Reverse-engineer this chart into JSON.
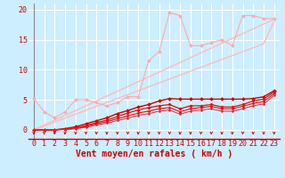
{
  "background_color": "#cceeff",
  "grid_color": "#ffffff",
  "xlabel": "Vent moyen/en rafales ( km/h )",
  "xlabel_color": "#cc0000",
  "xlabel_fontsize": 7,
  "tick_color": "#cc0000",
  "tick_fontsize": 6,
  "ylim": [
    -1.5,
    21
  ],
  "xlim": [
    -0.5,
    23.5
  ],
  "yticks": [
    0,
    5,
    10,
    15,
    20
  ],
  "xticks": [
    0,
    1,
    2,
    3,
    4,
    5,
    6,
    7,
    8,
    9,
    10,
    11,
    12,
    13,
    14,
    15,
    16,
    17,
    18,
    19,
    20,
    21,
    22,
    23
  ],
  "x": [
    0,
    1,
    2,
    3,
    4,
    5,
    6,
    7,
    8,
    9,
    10,
    11,
    12,
    13,
    14,
    15,
    16,
    17,
    18,
    19,
    20,
    21,
    22,
    23
  ],
  "series": [
    {
      "name": "line1_light_straight",
      "y": [
        0,
        0.65,
        1.3,
        1.95,
        2.6,
        3.25,
        3.9,
        4.55,
        5.2,
        5.85,
        6.5,
        7.15,
        7.8,
        8.45,
        9.1,
        9.75,
        10.4,
        11.05,
        11.7,
        12.35,
        13.0,
        13.65,
        14.3,
        18.0
      ],
      "color": "#ffbbbb",
      "linewidth": 1.0,
      "marker": null,
      "linestyle": "-"
    },
    {
      "name": "line1b_light_straight2",
      "y": [
        0,
        0.8,
        1.6,
        2.4,
        3.2,
        4.0,
        4.8,
        5.6,
        6.4,
        7.2,
        8.0,
        8.8,
        9.6,
        10.4,
        11.2,
        12.0,
        12.8,
        13.6,
        14.4,
        15.2,
        16.0,
        16.8,
        17.6,
        18.4
      ],
      "color": "#ffbbbb",
      "linewidth": 1.0,
      "marker": null,
      "linestyle": "-"
    },
    {
      "name": "line2_light_diamond",
      "y": [
        5.2,
        3.0,
        2.0,
        3.0,
        5.0,
        5.0,
        4.5,
        4.0,
        4.5,
        5.5,
        5.5,
        11.5,
        13.0,
        19.5,
        19.0,
        14.0,
        14.0,
        14.5,
        15.0,
        14.0,
        19.0,
        19.0,
        18.5,
        18.5
      ],
      "color": "#ffaaaa",
      "linewidth": 0.8,
      "marker": "D",
      "markersize": 2.0,
      "linestyle": "-"
    },
    {
      "name": "line3_dark_top",
      "y": [
        0,
        0,
        0,
        0.2,
        0.5,
        1.0,
        1.5,
        2.0,
        2.7,
        3.2,
        3.8,
        4.2,
        4.8,
        5.2,
        5.1,
        5.1,
        5.1,
        5.1,
        5.1,
        5.1,
        5.1,
        5.2,
        5.5,
        6.5
      ],
      "color": "#cc0000",
      "linewidth": 1.0,
      "marker": "D",
      "markersize": 2.0,
      "linestyle": "-"
    },
    {
      "name": "line4_dark_mid1",
      "y": [
        0,
        0,
        0,
        0.1,
        0.3,
        0.7,
        1.2,
        1.6,
        2.2,
        2.8,
        3.3,
        3.7,
        4.0,
        4.2,
        3.5,
        4.0,
        4.0,
        4.2,
        3.8,
        3.8,
        4.2,
        4.8,
        5.1,
        6.3
      ],
      "color": "#dd1111",
      "linewidth": 0.9,
      "marker": "D",
      "markersize": 1.8,
      "linestyle": "-"
    },
    {
      "name": "line5_dark_mid2",
      "y": [
        0,
        0,
        0,
        0.08,
        0.25,
        0.55,
        1.0,
        1.35,
        1.85,
        2.3,
        2.8,
        3.1,
        3.5,
        3.7,
        3.0,
        3.5,
        3.7,
        3.9,
        3.5,
        3.5,
        3.9,
        4.4,
        4.7,
        6.0
      ],
      "color": "#dd1111",
      "linewidth": 0.8,
      "marker": "D",
      "markersize": 1.5,
      "linestyle": "-"
    },
    {
      "name": "line6_dark_low",
      "y": [
        0,
        0,
        0,
        0.05,
        0.18,
        0.42,
        0.8,
        1.1,
        1.55,
        1.95,
        2.4,
        2.7,
        3.1,
        3.3,
        2.6,
        3.1,
        3.3,
        3.5,
        3.1,
        3.1,
        3.5,
        4.0,
        4.3,
        5.7
      ],
      "color": "#ee2222",
      "linewidth": 0.7,
      "marker": "D",
      "markersize": 1.3,
      "linestyle": "-"
    }
  ],
  "arrow_color": "#cc0000",
  "spine_color": "#cc0000"
}
